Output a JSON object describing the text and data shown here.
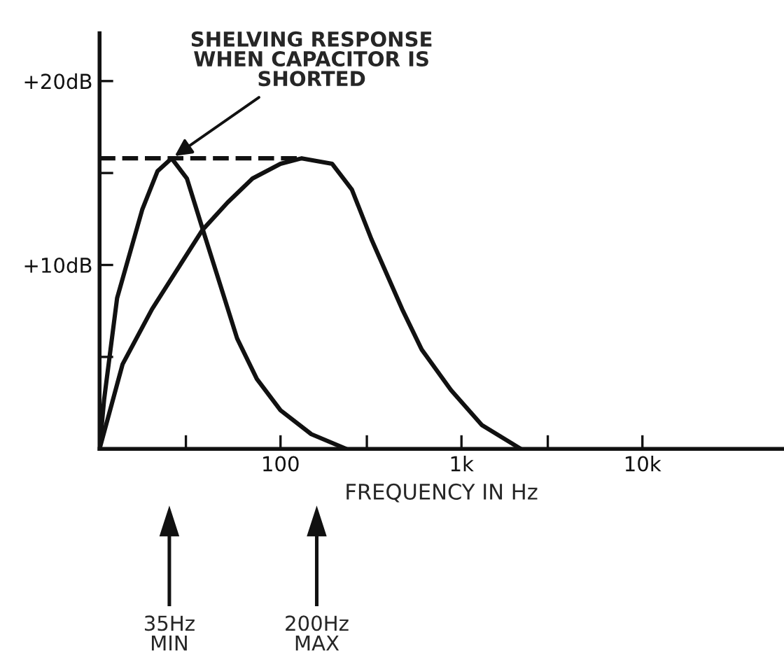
{
  "chart_data": {
    "type": "line",
    "xlabel": "FREQUENCY IN Hz",
    "log": "x",
    "xlim": [
      10,
      60000
    ],
    "ylim": [
      0,
      22.6
    ],
    "xticks": [
      {
        "value": 30,
        "label": null
      },
      {
        "value": 100,
        "label": "100"
      },
      {
        "value": 300,
        "label": null
      },
      {
        "value": 1000,
        "label": "1k"
      },
      {
        "value": 3000,
        "label": null
      },
      {
        "value": 10000,
        "label": "10k"
      }
    ],
    "yticks": [
      {
        "value": 5,
        "label": null
      },
      {
        "value": 10,
        "label": "+10dB"
      },
      {
        "value": 15,
        "label": null
      },
      {
        "value": 20,
        "label": "+20dB"
      }
    ],
    "grid": false,
    "legend": false,
    "marker": "none",
    "series": [
      {
        "color": "#111111",
        "line_style": "solid",
        "x": [
          10,
          10.6,
          12.5,
          17.2,
          20.9,
          25,
          30.4,
          37,
          57.6,
          74,
          100,
          148,
          231
        ],
        "values": [
          0,
          2.7,
          8.2,
          13.0,
          15.1,
          15.8,
          14.7,
          12.0,
          6.0,
          3.8,
          2.1,
          0.8,
          0
        ]
      },
      {
        "color": "#111111",
        "line_style": "solid",
        "x": [
          10,
          13.4,
          19.5,
          37,
          51,
          70,
          100,
          131,
          193,
          248,
          318,
          470,
          603,
          875,
          1294,
          2130
        ],
        "values": [
          0,
          4.6,
          7.6,
          11.9,
          13.4,
          14.7,
          15.5,
          15.8,
          15.5,
          14.1,
          11.4,
          7.6,
          5.4,
          3.2,
          1.3,
          0
        ]
      },
      {
        "color": "#111111",
        "line_style": "dashed",
        "x": [
          10,
          131
        ],
        "values": [
          15.8,
          15.8
        ]
      }
    ],
    "annotations": [
      {
        "text": "SHELVING RESPONSE\nWHEN CAPACITOR IS\nSHORTED",
        "x": 25,
        "y": 15.8
      },
      "35Hz\nMIN",
      "200Hz\nMAX"
    ]
  }
}
